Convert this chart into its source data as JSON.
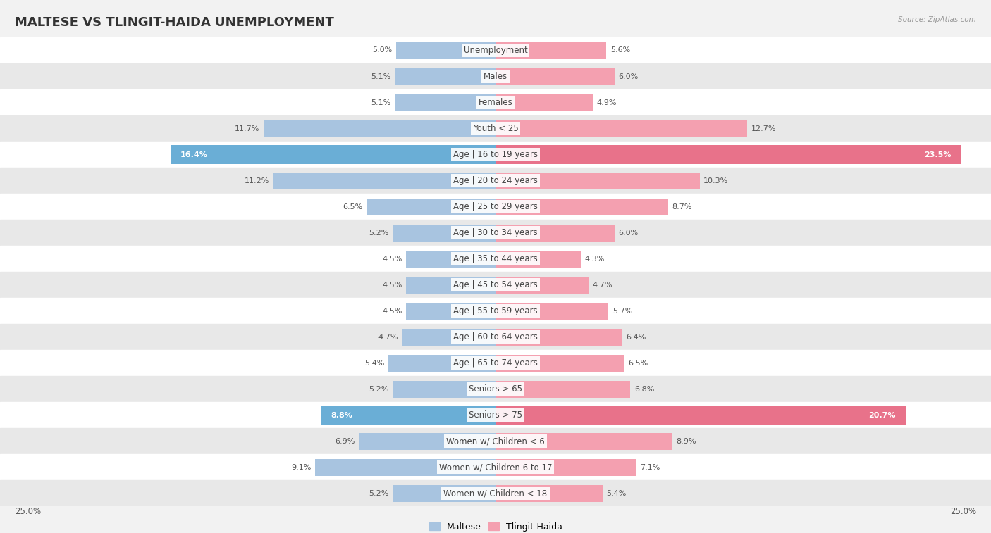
{
  "title": "MALTESE VS TLINGIT-HAIDA UNEMPLOYMENT",
  "source": "Source: ZipAtlas.com",
  "categories": [
    "Unemployment",
    "Males",
    "Females",
    "Youth < 25",
    "Age | 16 to 19 years",
    "Age | 20 to 24 years",
    "Age | 25 to 29 years",
    "Age | 30 to 34 years",
    "Age | 35 to 44 years",
    "Age | 45 to 54 years",
    "Age | 55 to 59 years",
    "Age | 60 to 64 years",
    "Age | 65 to 74 years",
    "Seniors > 65",
    "Seniors > 75",
    "Women w/ Children < 6",
    "Women w/ Children 6 to 17",
    "Women w/ Children < 18"
  ],
  "maltese": [
    5.0,
    5.1,
    5.1,
    11.7,
    16.4,
    11.2,
    6.5,
    5.2,
    4.5,
    4.5,
    4.5,
    4.7,
    5.4,
    5.2,
    8.8,
    6.9,
    9.1,
    5.2
  ],
  "tlingit": [
    5.6,
    6.0,
    4.9,
    12.7,
    23.5,
    10.3,
    8.7,
    6.0,
    4.3,
    4.7,
    5.7,
    6.4,
    6.5,
    6.8,
    20.7,
    8.9,
    7.1,
    5.4
  ],
  "maltese_color": "#a8c4e0",
  "tlingit_color": "#f4a0b0",
  "maltese_highlight_color": "#6aaed6",
  "tlingit_highlight_color": "#e8728a",
  "highlight_rows": [
    4,
    14
  ],
  "bg_color": "#f2f2f2",
  "row_bg_color": "#ffffff",
  "row_alt_color": "#e8e8e8",
  "xlim": 25.0,
  "legend_maltese": "Maltese",
  "legend_tlingit": "Tlingit-Haida",
  "title_fontsize": 13,
  "label_fontsize": 8.5,
  "value_fontsize": 8.0
}
